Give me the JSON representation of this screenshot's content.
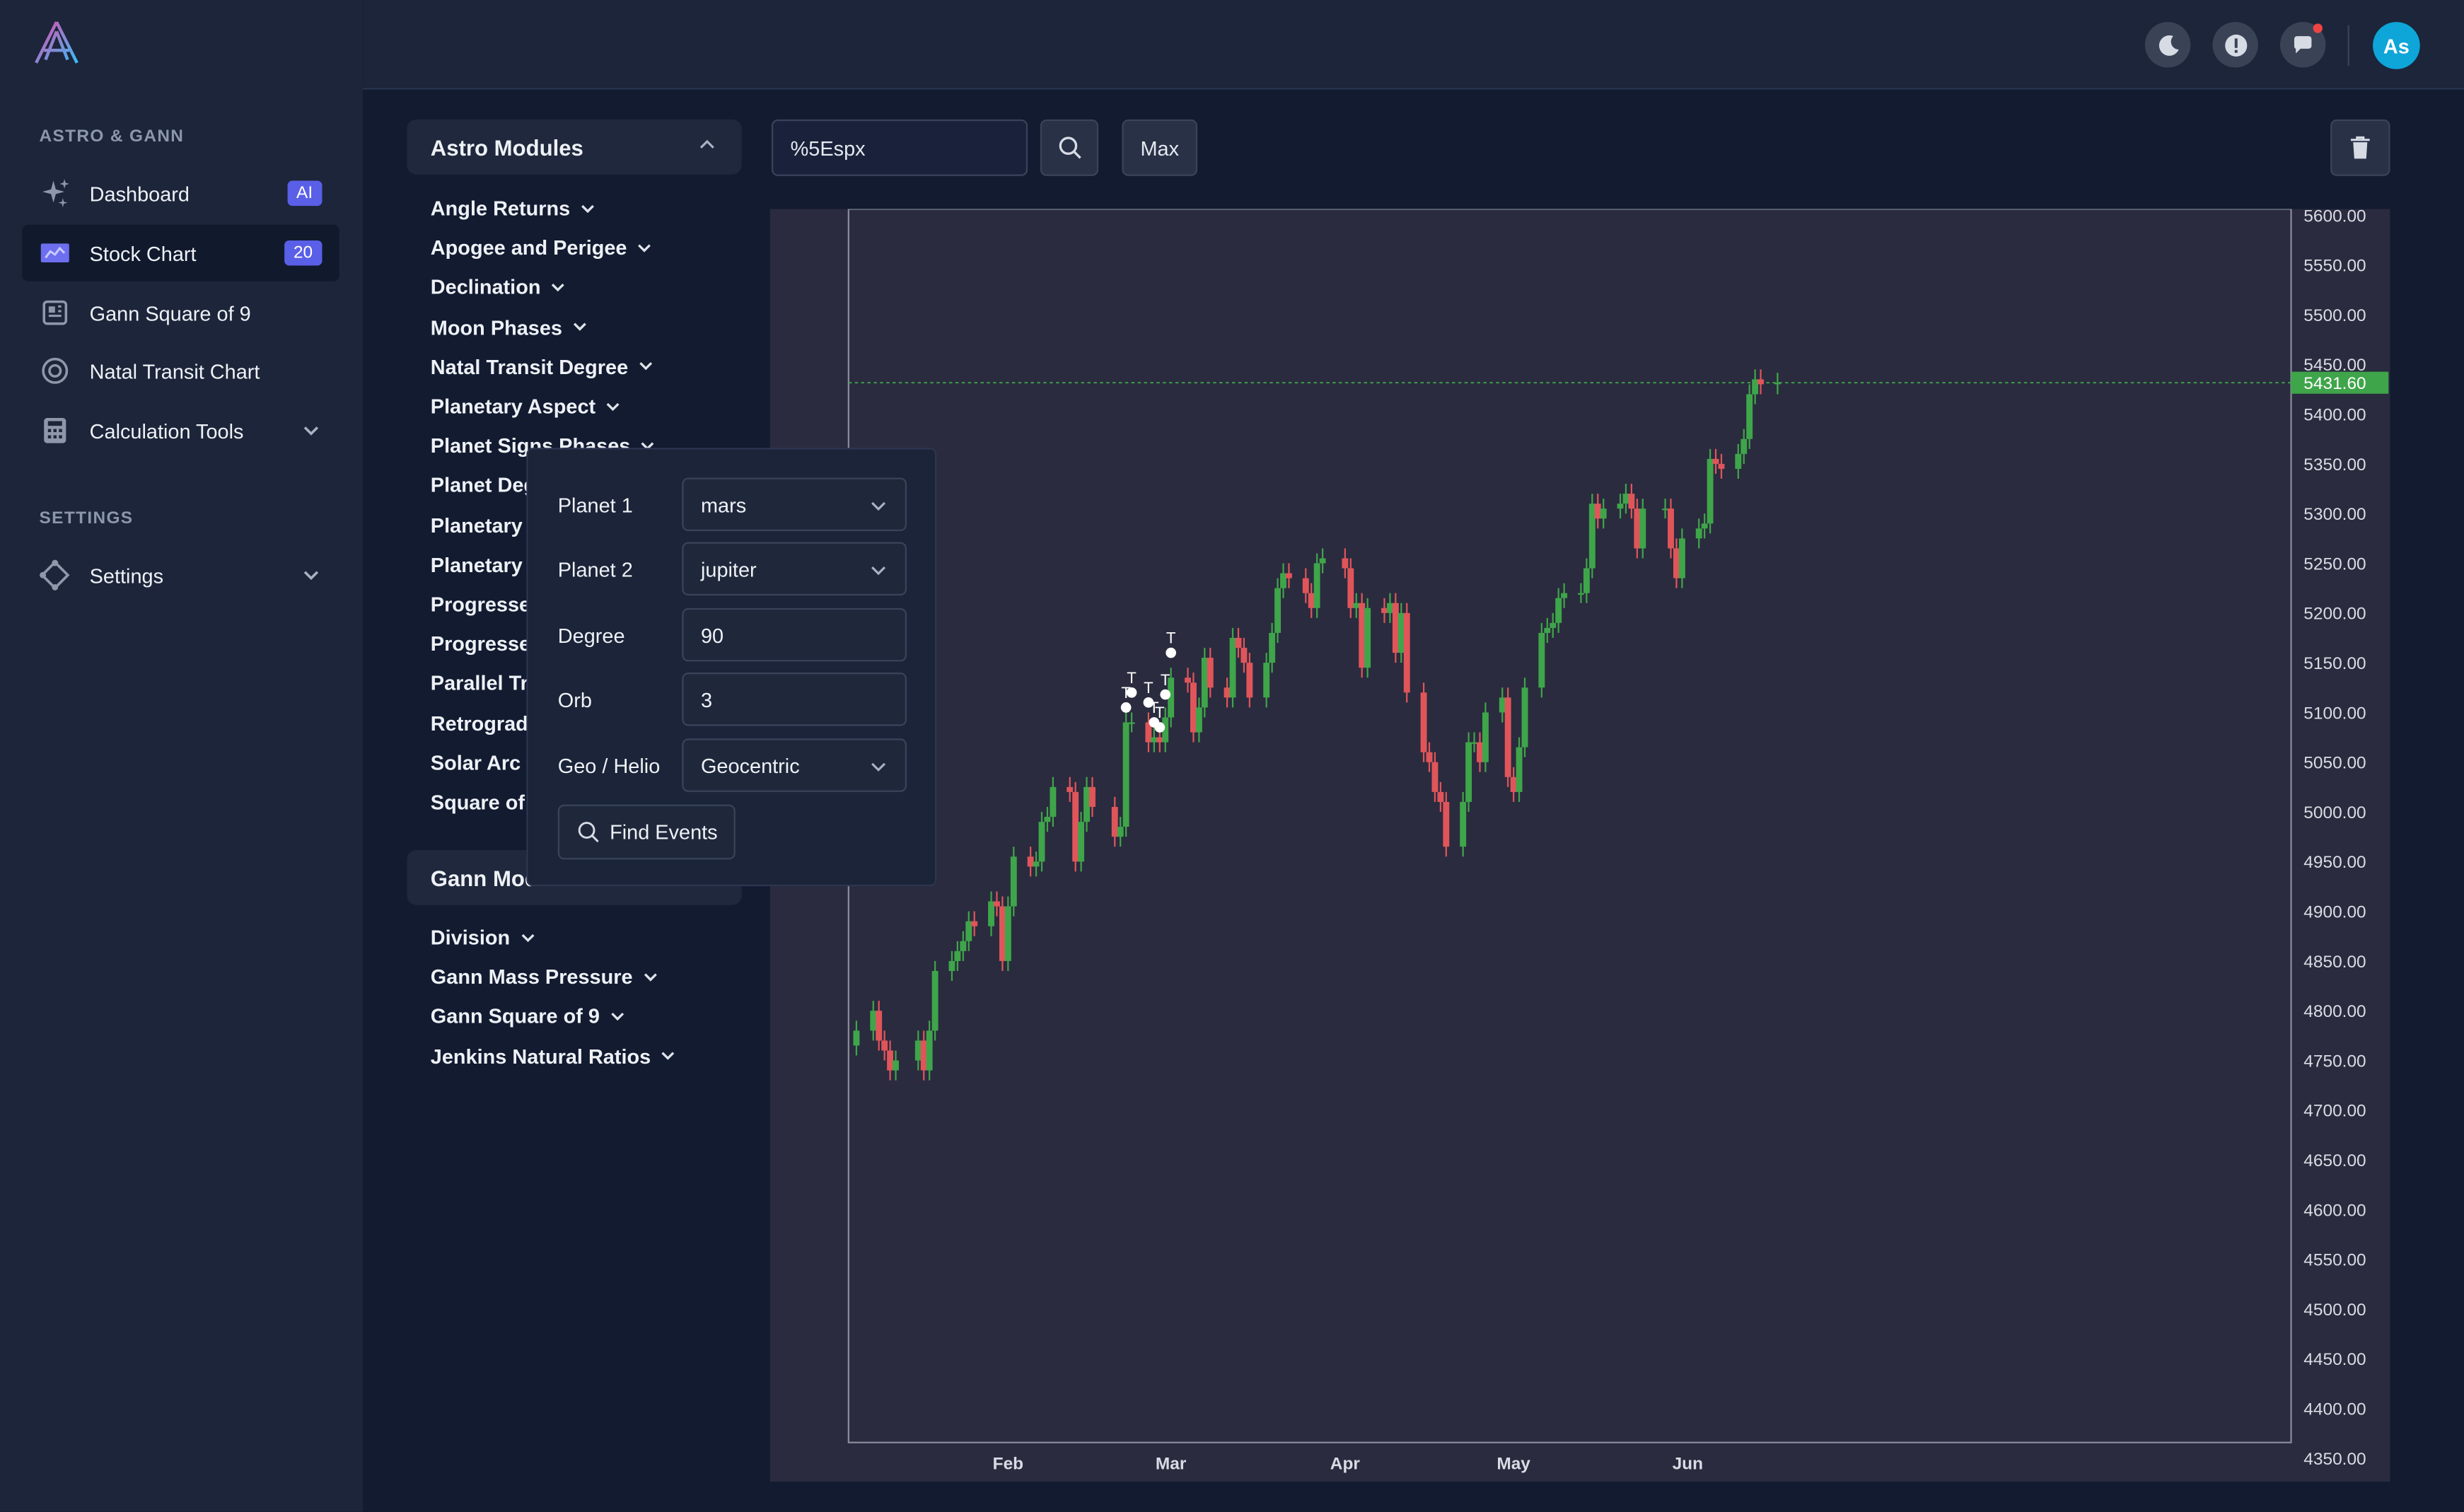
{
  "sidebar": {
    "section_astro": "ASTRO & GANN",
    "section_settings": "SETTINGS",
    "items": [
      {
        "label": "Dashboard",
        "badge": "AI",
        "icon": "sparkles-icon"
      },
      {
        "label": "Stock Chart",
        "badge": "20",
        "icon": "chart-icon"
      },
      {
        "label": "Gann Square of 9",
        "icon": "square-grid-icon"
      },
      {
        "label": "Natal Transit Chart",
        "icon": "target-icon"
      },
      {
        "label": "Calculation Tools",
        "icon": "calculator-icon"
      }
    ],
    "settings_label": "Settings"
  },
  "topbar": {
    "avatar": "As",
    "icons": [
      "moon-icon",
      "alert-icon",
      "chat-icon"
    ],
    "notification_color": "#ef4444"
  },
  "astro_modules": {
    "title": "Astro Modules",
    "items": [
      "Angle Returns",
      "Apogee and Perigee",
      "Declination",
      "Moon Phases",
      "Natal Transit Degree",
      "Planetary Aspect",
      "Planet Signs Phases",
      "Planet Deg",
      "Planetary",
      "Planetary",
      "Progresse",
      "Progresse",
      "Parallel Tr",
      "Retrograd",
      "Solar Arc",
      "Square of"
    ]
  },
  "gann_modules": {
    "title": "Gann Mod",
    "items": [
      "Division",
      "Gann Mass Pressure",
      "Gann Square of 9",
      "Jenkins Natural Ratios"
    ]
  },
  "toolbar": {
    "symbol": "%5Espx",
    "range": "Max"
  },
  "form": {
    "planet1_label": "Planet 1",
    "planet1_value": "mars",
    "planet2_label": "Planet 2",
    "planet2_value": "jupiter",
    "degree_label": "Degree",
    "degree_value": "90",
    "orb_label": "Orb",
    "orb_value": "3",
    "geo_label": "Geo / Helio",
    "geo_value": "Geocentric",
    "find_label": "Find Events"
  },
  "chart_data": {
    "type": "candlestick",
    "symbol": "%5Espx",
    "y_ticks": [
      "5600.00",
      "5550.00",
      "5500.00",
      "5450.00",
      "5400.00",
      "5350.00",
      "5300.00",
      "5250.00",
      "5200.00",
      "5150.00",
      "5100.00",
      "5050.00",
      "5000.00",
      "4950.00",
      "4900.00",
      "4850.00",
      "4800.00",
      "4750.00",
      "4700.00",
      "4650.00",
      "4600.00",
      "4550.00",
      "4500.00",
      "4450.00",
      "4400.00",
      "4350.00"
    ],
    "ylim": [
      4330,
      5610
    ],
    "x_ticks": [
      {
        "label": "Feb",
        "date": "2024-02-01"
      },
      {
        "label": "Mar",
        "date": "2024-03-01"
      },
      {
        "label": "Apr",
        "date": "2024-04-01"
      },
      {
        "label": "May",
        "date": "2024-05-01"
      },
      {
        "label": "Jun",
        "date": "2024-06-01"
      }
    ],
    "last_price": "5431.60",
    "up_color": "#3fa54a",
    "down_color": "#e0555a",
    "marker_label": "T",
    "closes": [
      {
        "date": "2024-01-05",
        "close": 4780
      },
      {
        "date": "2024-01-08",
        "close": 4800
      },
      {
        "date": "2024-01-09",
        "close": 4770
      },
      {
        "date": "2024-01-10",
        "close": 4760
      },
      {
        "date": "2024-01-11",
        "close": 4740
      },
      {
        "date": "2024-01-12",
        "close": 4750
      },
      {
        "date": "2024-01-16",
        "close": 4770
      },
      {
        "date": "2024-01-17",
        "close": 4740
      },
      {
        "date": "2024-01-18",
        "close": 4780
      },
      {
        "date": "2024-01-19",
        "close": 4840
      },
      {
        "date": "2024-01-22",
        "close": 4850
      },
      {
        "date": "2024-01-23",
        "close": 4860
      },
      {
        "date": "2024-01-24",
        "close": 4870
      },
      {
        "date": "2024-01-25",
        "close": 4890
      },
      {
        "date": "2024-01-26",
        "close": 4885
      },
      {
        "date": "2024-01-29",
        "close": 4910
      },
      {
        "date": "2024-01-30",
        "close": 4905
      },
      {
        "date": "2024-01-31",
        "close": 4850
      },
      {
        "date": "2024-02-01",
        "close": 4905
      },
      {
        "date": "2024-02-02",
        "close": 4955
      },
      {
        "date": "2024-02-05",
        "close": 4945
      },
      {
        "date": "2024-02-06",
        "close": 4950
      },
      {
        "date": "2024-02-07",
        "close": 4990
      },
      {
        "date": "2024-02-08",
        "close": 4995
      },
      {
        "date": "2024-02-09",
        "close": 5025
      },
      {
        "date": "2024-02-12",
        "close": 5020
      },
      {
        "date": "2024-02-13",
        "close": 4950
      },
      {
        "date": "2024-02-14",
        "close": 4990
      },
      {
        "date": "2024-02-15",
        "close": 5025
      },
      {
        "date": "2024-02-16",
        "close": 5005
      },
      {
        "date": "2024-02-20",
        "close": 4975
      },
      {
        "date": "2024-02-21",
        "close": 4985
      },
      {
        "date": "2024-02-22",
        "close": 5090
      },
      {
        "date": "2024-02-23",
        "close": 5090
      },
      {
        "date": "2024-02-26",
        "close": 5070
      },
      {
        "date": "2024-02-27",
        "close": 5075
      },
      {
        "date": "2024-02-28",
        "close": 5070
      },
      {
        "date": "2024-02-29",
        "close": 5095
      },
      {
        "date": "2024-03-01",
        "close": 5135
      },
      {
        "date": "2024-03-04",
        "close": 5130
      },
      {
        "date": "2024-03-05",
        "close": 5080
      },
      {
        "date": "2024-03-06",
        "close": 5105
      },
      {
        "date": "2024-03-07",
        "close": 5155
      },
      {
        "date": "2024-03-08",
        "close": 5125
      },
      {
        "date": "2024-03-11",
        "close": 5115
      },
      {
        "date": "2024-03-12",
        "close": 5175
      },
      {
        "date": "2024-03-13",
        "close": 5165
      },
      {
        "date": "2024-03-14",
        "close": 5150
      },
      {
        "date": "2024-03-15",
        "close": 5115
      },
      {
        "date": "2024-03-18",
        "close": 5150
      },
      {
        "date": "2024-03-19",
        "close": 5180
      },
      {
        "date": "2024-03-20",
        "close": 5225
      },
      {
        "date": "2024-03-21",
        "close": 5240
      },
      {
        "date": "2024-03-22",
        "close": 5235
      },
      {
        "date": "2024-03-25",
        "close": 5220
      },
      {
        "date": "2024-03-26",
        "close": 5205
      },
      {
        "date": "2024-03-27",
        "close": 5250
      },
      {
        "date": "2024-03-28",
        "close": 5255
      },
      {
        "date": "2024-04-01",
        "close": 5245
      },
      {
        "date": "2024-04-02",
        "close": 5205
      },
      {
        "date": "2024-04-03",
        "close": 5210
      },
      {
        "date": "2024-04-04",
        "close": 5145
      },
      {
        "date": "2024-04-05",
        "close": 5205
      },
      {
        "date": "2024-04-08",
        "close": 5200
      },
      {
        "date": "2024-04-09",
        "close": 5210
      },
      {
        "date": "2024-04-10",
        "close": 5160
      },
      {
        "date": "2024-04-11",
        "close": 5200
      },
      {
        "date": "2024-04-12",
        "close": 5120
      },
      {
        "date": "2024-04-15",
        "close": 5060
      },
      {
        "date": "2024-04-16",
        "close": 5050
      },
      {
        "date": "2024-04-17",
        "close": 5020
      },
      {
        "date": "2024-04-18",
        "close": 5010
      },
      {
        "date": "2024-04-19",
        "close": 4965
      },
      {
        "date": "2024-04-22",
        "close": 5010
      },
      {
        "date": "2024-04-23",
        "close": 5070
      },
      {
        "date": "2024-04-24",
        "close": 5070
      },
      {
        "date": "2024-04-25",
        "close": 5050
      },
      {
        "date": "2024-04-26",
        "close": 5100
      },
      {
        "date": "2024-04-29",
        "close": 5115
      },
      {
        "date": "2024-04-30",
        "close": 5035
      },
      {
        "date": "2024-05-01",
        "close": 5020
      },
      {
        "date": "2024-05-02",
        "close": 5065
      },
      {
        "date": "2024-05-03",
        "close": 5125
      },
      {
        "date": "2024-05-06",
        "close": 5180
      },
      {
        "date": "2024-05-07",
        "close": 5185
      },
      {
        "date": "2024-05-08",
        "close": 5190
      },
      {
        "date": "2024-05-09",
        "close": 5215
      },
      {
        "date": "2024-05-10",
        "close": 5220
      },
      {
        "date": "2024-05-13",
        "close": 5220
      },
      {
        "date": "2024-05-14",
        "close": 5245
      },
      {
        "date": "2024-05-15",
        "close": 5310
      },
      {
        "date": "2024-05-16",
        "close": 5295
      },
      {
        "date": "2024-05-17",
        "close": 5305
      },
      {
        "date": "2024-05-20",
        "close": 5310
      },
      {
        "date": "2024-05-21",
        "close": 5320
      },
      {
        "date": "2024-05-22",
        "close": 5305
      },
      {
        "date": "2024-05-23",
        "close": 5265
      },
      {
        "date": "2024-05-24",
        "close": 5305
      },
      {
        "date": "2024-05-28",
        "close": 5305
      },
      {
        "date": "2024-05-29",
        "close": 5265
      },
      {
        "date": "2024-05-30",
        "close": 5235
      },
      {
        "date": "2024-05-31",
        "close": 5275
      },
      {
        "date": "2024-06-03",
        "close": 5285
      },
      {
        "date": "2024-06-04",
        "close": 5290
      },
      {
        "date": "2024-06-05",
        "close": 5355
      },
      {
        "date": "2024-06-06",
        "close": 5350
      },
      {
        "date": "2024-06-07",
        "close": 5345
      },
      {
        "date": "2024-06-10",
        "close": 5360
      },
      {
        "date": "2024-06-11",
        "close": 5375
      },
      {
        "date": "2024-06-12",
        "close": 5420
      },
      {
        "date": "2024-06-13",
        "close": 5435
      },
      {
        "date": "2024-06-14",
        "close": 5430
      },
      {
        "date": "2024-06-17",
        "close": 5431.6
      }
    ],
    "markers": [
      {
        "date": "2024-02-22",
        "price": 5105
      },
      {
        "date": "2024-02-23",
        "price": 5120
      },
      {
        "date": "2024-02-26",
        "price": 5110
      },
      {
        "date": "2024-02-27",
        "price": 5090
      },
      {
        "date": "2024-02-28",
        "price": 5085
      },
      {
        "date": "2024-02-29",
        "price": 5118
      },
      {
        "date": "2024-03-01",
        "price": 5160
      }
    ]
  }
}
